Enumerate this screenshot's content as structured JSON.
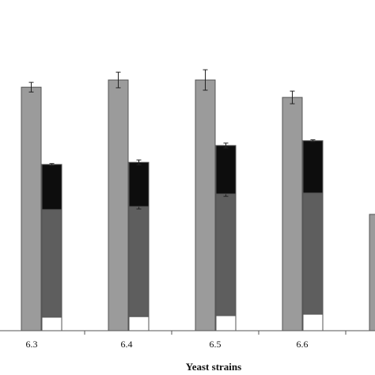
{
  "chart_data": {
    "type": "bar",
    "x_label": "Yeast strains",
    "categories": [
      "6.3",
      "6.4",
      "6.5",
      "6.6",
      null
    ],
    "ylim": [
      0,
      110
    ],
    "series": [
      {
        "color": "#9b9b9b",
        "stack": 0,
        "values": [
          81,
          83.4,
          83.4,
          77.6,
          38.7
        ],
        "errors": [
          1.6,
          2.6,
          3.4,
          2.1,
          null
        ]
      },
      {
        "color": "#ffffff",
        "stack": 1,
        "values": [
          4.5,
          4.7,
          5,
          5.5,
          null
        ],
        "errors": [
          null,
          null,
          null,
          null,
          null
        ]
      },
      {
        "color": "#5e5e5e",
        "stack": 1,
        "values": [
          35.8,
          36.6,
          40.5,
          40.3,
          null
        ],
        "errors": [
          null,
          0.8,
          0.8,
          null,
          null
        ]
      },
      {
        "color": "#0d0d0d",
        "stack": 1,
        "values": [
          15,
          14.7,
          16.1,
          17.4,
          null
        ],
        "errors": [
          0.3,
          0.8,
          0.8,
          0.3,
          null
        ]
      }
    ]
  }
}
